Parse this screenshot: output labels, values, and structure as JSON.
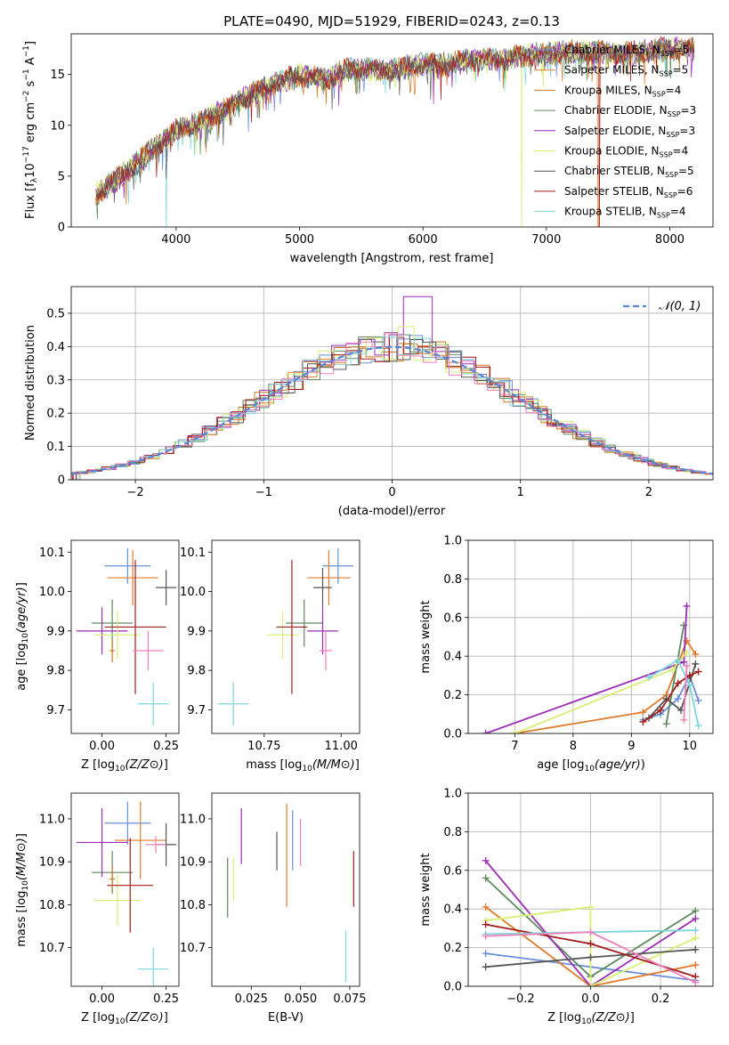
{
  "figure_title": "PLATE=0490, MJD=51929, FIBERID=0243, z=0.13",
  "colors": [
    "#6a8fdc",
    "#e07b2a",
    "#c67a22",
    "#5f8a5f",
    "#9b2eb5",
    "#d9ef74",
    "#555555",
    "#a31c1c",
    "#7fd6da",
    "#ef7fba"
  ],
  "legend": [
    {
      "label": "Chabrier MILES, N",
      "sub": "SSP",
      "eq": "=5",
      "color": "#6a8fdc"
    },
    {
      "label": "Salpeter MILES, N",
      "sub": "SSP",
      "eq": "=5",
      "color": "#e07b2a"
    },
    {
      "label": "Kroupa MILES, N",
      "sub": "SSP",
      "eq": "=4",
      "color": "#c67a22"
    },
    {
      "label": "Chabrier ELODIE, N",
      "sub": "SSP",
      "eq": "=3",
      "color": "#5f8a5f"
    },
    {
      "label": "Salpeter ELODIE, N",
      "sub": "SSP",
      "eq": "=3",
      "color": "#9b2eb5"
    },
    {
      "label": "Kroupa ELODIE, N",
      "sub": "SSP",
      "eq": "=4",
      "color": "#d9ef74"
    },
    {
      "label": "Chabrier STELIB, N",
      "sub": "SSP",
      "eq": "=5",
      "color": "#555555"
    },
    {
      "label": "Salpeter STELIB, N",
      "sub": "SSP",
      "eq": "=6",
      "color": "#a31c1c"
    },
    {
      "label": "Kroupa STELIB, N",
      "sub": "SSP",
      "eq": "=4",
      "color": "#7fd6da"
    }
  ],
  "chart_data": [
    {
      "id": "spectrum",
      "type": "line",
      "xlabel": "wavelength [Angstrom, rest frame]",
      "ylabel": "Flux [f",
      "xlim": [
        3150,
        8350
      ],
      "ylim": [
        0,
        19
      ],
      "xticks": [
        4000,
        5000,
        6000,
        7000,
        8000
      ],
      "yticks": [
        0,
        5,
        10,
        15
      ],
      "grid": false,
      "legend_position": "top-right",
      "continuum": [
        [
          3350,
          3.2
        ],
        [
          3500,
          4.5
        ],
        [
          3700,
          6.5
        ],
        [
          3900,
          8.5
        ],
        [
          4000,
          9.5
        ],
        [
          4200,
          10.3
        ],
        [
          4400,
          11.5
        ],
        [
          4600,
          13
        ],
        [
          4800,
          14
        ],
        [
          5000,
          15
        ],
        [
          5200,
          14.5
        ],
        [
          5400,
          15.5
        ],
        [
          5600,
          15.5
        ],
        [
          5800,
          15.5
        ],
        [
          6000,
          16
        ],
        [
          6200,
          16
        ],
        [
          6400,
          16.5
        ],
        [
          6600,
          16.5
        ],
        [
          6800,
          16.8
        ],
        [
          7000,
          17
        ],
        [
          7200,
          17.2
        ],
        [
          7400,
          17.2
        ],
        [
          7600,
          17
        ],
        [
          7800,
          17.3
        ],
        [
          8000,
          17.5
        ],
        [
          8200,
          17.5
        ]
      ],
      "model_cutoffs": [
        {
          "color": "#e07b2a",
          "x": 7420
        },
        {
          "color": "#d9ef74",
          "x": 6800
        },
        {
          "color": "#a31c1c",
          "x": 7430
        },
        {
          "color": "#d9ef74",
          "x": 3920
        },
        {
          "color": "#7fd6da",
          "x": 3920
        }
      ]
    },
    {
      "id": "residuals",
      "type": "line",
      "xlabel": "(data-model)/error",
      "ylabel": "Normed distribution",
      "xlim": [
        -2.5,
        2.5
      ],
      "ylim": [
        0,
        0.58
      ],
      "xticks": [
        -2,
        -1,
        0,
        1,
        2
      ],
      "yticks": [
        0,
        0.1,
        0.2,
        0.3,
        0.4,
        0.5
      ],
      "grid": true,
      "legend_position": "top-right",
      "normal_label": "N(0,1)",
      "series_peak_values": [
        {
          "color": "#9b2eb5",
          "x": 0.25,
          "y": 0.55
        },
        {
          "color": "#d9ef74",
          "x": 0.15,
          "y": 0.46
        }
      ]
    },
    {
      "id": "age_vs_Z",
      "type": "scatter",
      "xlabel": "Z [log",
      "ylabel": "age  [log",
      "xlim": [
        -0.12,
        0.3
      ],
      "ylim": [
        9.64,
        10.13
      ],
      "xticks": [
        0,
        0.25
      ],
      "yticks": [
        9.7,
        9.8,
        9.9,
        10.0,
        10.1
      ],
      "points": [
        {
          "c": "#6a8fdc",
          "x": 0.1,
          "dx": 0.09,
          "y": 10.065,
          "dy": 0.045
        },
        {
          "c": "#e07b2a",
          "x": 0.12,
          "dx": 0.1,
          "y": 10.035,
          "dy": 0.07
        },
        {
          "c": "#555555",
          "x": 0.25,
          "dx": 0.04,
          "y": 10.01,
          "dy": 0.045
        },
        {
          "c": "#5f8a5f",
          "x": 0.04,
          "dx": 0.08,
          "y": 9.92,
          "dy": 0.06
        },
        {
          "c": "#9b2eb5",
          "x": 0,
          "dx": 0.1,
          "y": 9.9,
          "dy": 0.06
        },
        {
          "c": "#d9ef74",
          "x": 0.06,
          "dx": 0.09,
          "y": 9.89,
          "dy": 0.06
        },
        {
          "c": "#a31c1c",
          "x": 0.13,
          "dx": 0.12,
          "y": 9.91,
          "dy": 0.17
        },
        {
          "c": "#ef7fba",
          "x": 0.18,
          "dx": 0.06,
          "y": 9.85,
          "dy": 0.05
        },
        {
          "c": "#7fd6da",
          "x": 0.2,
          "dx": 0.06,
          "y": 9.715,
          "dy": 0.055
        },
        {
          "c": "#c67a22",
          "x": 0.04,
          "dx": 0.01,
          "y": 9.85,
          "dy": 0.03
        }
      ]
    },
    {
      "id": "age_vs_mass",
      "type": "scatter",
      "xlabel": "mass [log",
      "ylabel": "",
      "xlim": [
        10.58,
        11.06
      ],
      "ylim": [
        9.64,
        10.13
      ],
      "xticks": [
        10.75,
        11.0
      ],
      "yticks": [
        9.7,
        9.8,
        9.9,
        10.0,
        10.1
      ],
      "points": [
        {
          "c": "#6a8fdc",
          "x": 10.99,
          "dx": 0.05,
          "y": 10.065,
          "dy": 0.045
        },
        {
          "c": "#e07b2a",
          "x": 10.96,
          "dx": 0.07,
          "y": 10.035,
          "dy": 0.07
        },
        {
          "c": "#555555",
          "x": 10.94,
          "dx": 0.03,
          "y": 10.01,
          "dy": 0.05
        },
        {
          "c": "#5f8a5f",
          "x": 10.88,
          "dx": 0.06,
          "y": 9.92,
          "dy": 0.06
        },
        {
          "c": "#9b2eb5",
          "x": 10.94,
          "dx": 0.05,
          "y": 9.9,
          "dy": 0.06
        },
        {
          "c": "#d9ef74",
          "x": 10.81,
          "dx": 0.05,
          "y": 9.89,
          "dy": 0.06
        },
        {
          "c": "#a31c1c",
          "x": 10.84,
          "dx": 0.05,
          "y": 9.91,
          "dy": 0.17
        },
        {
          "c": "#ef7fba",
          "x": 10.95,
          "dx": 0.02,
          "y": 9.85,
          "dy": 0.05
        },
        {
          "c": "#7fd6da",
          "x": 10.65,
          "dx": 0.05,
          "y": 9.715,
          "dy": 0.055
        }
      ]
    },
    {
      "id": "weight_vs_age",
      "type": "line",
      "xlabel": "age  [log",
      "ylabel": "mass weight",
      "xlim": [
        6.2,
        10.4
      ],
      "ylim": [
        0,
        1
      ],
      "xticks": [
        7,
        8,
        9,
        10
      ],
      "yticks": [
        0,
        0.2,
        0.4,
        0.6,
        0.8,
        1.0
      ],
      "grid": true,
      "series": [
        {
          "c": "#6a8fdc",
          "pts": [
            [
              9.2,
              0.07
            ],
            [
              9.5,
              0.1
            ],
            [
              9.8,
              0.18
            ],
            [
              10.0,
              0.3
            ],
            [
              10.15,
              0.17
            ]
          ]
        },
        {
          "c": "#e07b2a",
          "pts": [
            [
              7.0,
              0
            ],
            [
              9.2,
              0.11
            ],
            [
              9.6,
              0.2
            ],
            [
              9.95,
              0.48
            ],
            [
              10.1,
              0.41
            ]
          ]
        },
        {
          "c": "#5f8a5f",
          "pts": [
            [
              9.6,
              0.05
            ],
            [
              9.9,
              0.56
            ]
          ]
        },
        {
          "c": "#9b2eb5",
          "pts": [
            [
              6.5,
              0
            ],
            [
              9.9,
              0.37
            ],
            [
              9.95,
              0.66
            ]
          ]
        },
        {
          "c": "#d9ef74",
          "pts": [
            [
              7.0,
              0
            ],
            [
              9.7,
              0.33
            ],
            [
              9.95,
              0.42
            ]
          ]
        },
        {
          "c": "#555555",
          "pts": [
            [
              9.3,
              0.08
            ],
            [
              9.6,
              0.18
            ],
            [
              9.85,
              0.12
            ],
            [
              10.1,
              0.36
            ]
          ]
        },
        {
          "c": "#a31c1c",
          "pts": [
            [
              9.2,
              0.06
            ],
            [
              9.5,
              0.12
            ],
            [
              9.8,
              0.26
            ],
            [
              10.0,
              0.3
            ],
            [
              10.15,
              0.32
            ]
          ]
        },
        {
          "c": "#7fd6da",
          "pts": [
            [
              9.3,
              0.29
            ],
            [
              9.8,
              0.38
            ],
            [
              10.0,
              0.25
            ],
            [
              10.15,
              0.04
            ]
          ]
        },
        {
          "c": "#ef7fba",
          "pts": [
            [
              9.9,
              0.07
            ],
            [
              9.95,
              0.35
            ]
          ]
        }
      ]
    },
    {
      "id": "mass_vs_Z",
      "type": "scatter",
      "xlabel": "Z [log",
      "ylabel": "mass [log",
      "xlim": [
        -0.12,
        0.3
      ],
      "ylim": [
        10.61,
        11.06
      ],
      "xticks": [
        0,
        0.25
      ],
      "yticks": [
        10.7,
        10.8,
        10.9,
        11.0
      ],
      "points": [
        {
          "c": "#6a8fdc",
          "x": 0.1,
          "dx": 0.09,
          "y": 10.99,
          "dy": 0.05
        },
        {
          "c": "#e07b2a",
          "x": 0.15,
          "dx": 0.1,
          "y": 10.95,
          "dy": 0.09
        },
        {
          "c": "#555555",
          "x": 0.25,
          "dx": 0.04,
          "y": 10.94,
          "dy": 0.05
        },
        {
          "c": "#5f8a5f",
          "x": 0.04,
          "dx": 0.08,
          "y": 10.875,
          "dy": 0.05
        },
        {
          "c": "#9b2eb5",
          "x": 0,
          "dx": 0.1,
          "y": 10.945,
          "dy": 0.08
        },
        {
          "c": "#d9ef74",
          "x": 0.06,
          "dx": 0.09,
          "y": 10.81,
          "dy": 0.06
        },
        {
          "c": "#a31c1c",
          "x": 0.11,
          "dx": 0.09,
          "y": 10.845,
          "dy": 0.11
        },
        {
          "c": "#ef7fba",
          "x": 0.21,
          "dx": 0.04,
          "y": 10.94,
          "dy": 0.02
        },
        {
          "c": "#7fd6da",
          "x": 0.2,
          "dx": 0.06,
          "y": 10.65,
          "dy": 0.05
        },
        {
          "c": "#c67a22",
          "x": 0.04,
          "dx": 0.01,
          "y": 10.86,
          "dy": 0.03
        }
      ]
    },
    {
      "id": "mass_vs_ebv",
      "type": "scatter",
      "xlabel": "E(B-V)",
      "ylabel": "",
      "xlim": [
        0.005,
        0.08
      ],
      "ylim": [
        10.61,
        11.06
      ],
      "xticks": [
        0.025,
        0.05,
        0.075
      ],
      "yticks": [
        10.7,
        10.8,
        10.9,
        11.0
      ],
      "points": [
        {
          "c": "#9b2eb5",
          "x": 0.02,
          "y": 10.96,
          "dy": 0.065
        },
        {
          "c": "#d9ef74",
          "x": 0.016,
          "y": 10.86,
          "dy": 0.05
        },
        {
          "c": "#5f8a5f",
          "x": 0.013,
          "y": 10.84,
          "dy": 0.07
        },
        {
          "c": "#555555",
          "x": 0.038,
          "y": 10.925,
          "dy": 0.045
        },
        {
          "c": "#e07b2a",
          "x": 0.043,
          "y": 10.915,
          "dy": 0.12
        },
        {
          "c": "#6a8fdc",
          "x": 0.046,
          "y": 10.95,
          "dy": 0.07
        },
        {
          "c": "#ef7fba",
          "x": 0.05,
          "y": 10.945,
          "dy": 0.055
        },
        {
          "c": "#7fd6da",
          "x": 0.073,
          "y": 10.68,
          "dy": 0.06
        },
        {
          "c": "#a31c1c",
          "x": 0.077,
          "y": 10.86,
          "dy": 0.065
        }
      ]
    },
    {
      "id": "weight_vs_Z",
      "type": "line",
      "xlabel": "Z [log",
      "ylabel": "mass weight",
      "xlim": [
        -0.35,
        0.35
      ],
      "ylim": [
        0,
        1
      ],
      "xticks": [
        -0.2,
        0.0,
        0.2
      ],
      "yticks": [
        0,
        0.2,
        0.4,
        0.6,
        0.8,
        1.0
      ],
      "grid": true,
      "series": [
        {
          "c": "#6a8fdc",
          "pts": [
            [
              -0.3,
              0.17
            ],
            [
              0,
              0.1
            ],
            [
              0.3,
              0.03
            ]
          ]
        },
        {
          "c": "#e07b2a",
          "pts": [
            [
              -0.3,
              0.41
            ],
            [
              0,
              0
            ],
            [
              0.3,
              0.11
            ]
          ]
        },
        {
          "c": "#5f8a5f",
          "pts": [
            [
              -0.3,
              0.56
            ],
            [
              0,
              0.05
            ],
            [
              0.3,
              0.39
            ]
          ]
        },
        {
          "c": "#9b2eb5",
          "pts": [
            [
              -0.3,
              0.65
            ],
            [
              0,
              0
            ],
            [
              0.3,
              0.35
            ]
          ]
        },
        {
          "c": "#d9ef74",
          "pts": [
            [
              -0.3,
              0.34
            ],
            [
              0,
              0.41
            ],
            [
              0,
              0
            ],
            [
              0.3,
              0.25
            ]
          ]
        },
        {
          "c": "#555555",
          "pts": [
            [
              -0.3,
              0.1
            ],
            [
              0,
              0.15
            ],
            [
              0.3,
              0.19
            ]
          ]
        },
        {
          "c": "#a31c1c",
          "pts": [
            [
              -0.3,
              0.32
            ],
            [
              0,
              0.22
            ],
            [
              0.3,
              0.05
            ]
          ]
        },
        {
          "c": "#7fd6da",
          "pts": [
            [
              -0.3,
              0.27
            ],
            [
              0,
              0.28
            ],
            [
              0.3,
              0.29
            ]
          ]
        },
        {
          "c": "#ef7fba",
          "pts": [
            [
              -0.3,
              0.26
            ],
            [
              0,
              0.28
            ],
            [
              0.3,
              0.02
            ]
          ]
        }
      ]
    }
  ]
}
